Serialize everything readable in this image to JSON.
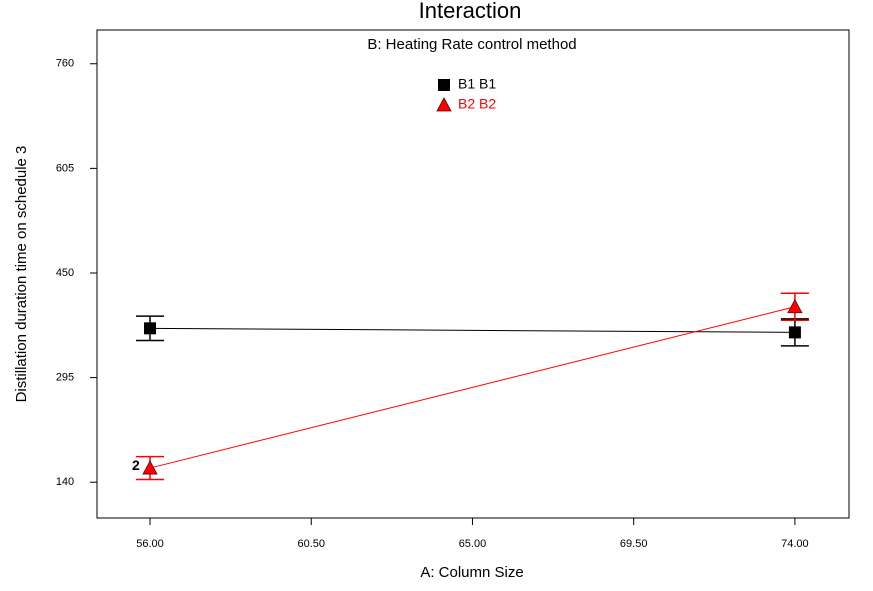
{
  "chart_data": {
    "type": "line",
    "title": "Interaction",
    "subtitle": "B: Heating Rate control method",
    "x_label": "A: Column Size",
    "y_label": "Distillation duration time on schedule 3",
    "x": [
      56,
      74
    ],
    "series": [
      {
        "name": "B1 B1",
        "color": "#000000",
        "marker": "square",
        "values": [
          368,
          362
        ],
        "errors": [
          18,
          20
        ]
      },
      {
        "name": "B2 B2",
        "color": "#ff0000",
        "marker": "triangle",
        "values": [
          161,
          400
        ],
        "errors": [
          17,
          20
        ]
      }
    ],
    "annotation": "2",
    "xlim": [
      54.52,
      75.51
    ],
    "ylim": [
      87,
      810
    ],
    "xticks": [
      {
        "value": 56,
        "label": "56.00"
      },
      {
        "value": 60.5,
        "label": "60.50"
      },
      {
        "value": 65,
        "label": "65.00"
      },
      {
        "value": 69.5,
        "label": "69.50"
      },
      {
        "value": 74,
        "label": "74.00"
      }
    ],
    "yticks": [
      140,
      295,
      450,
      605,
      760
    ],
    "legend": "top"
  }
}
